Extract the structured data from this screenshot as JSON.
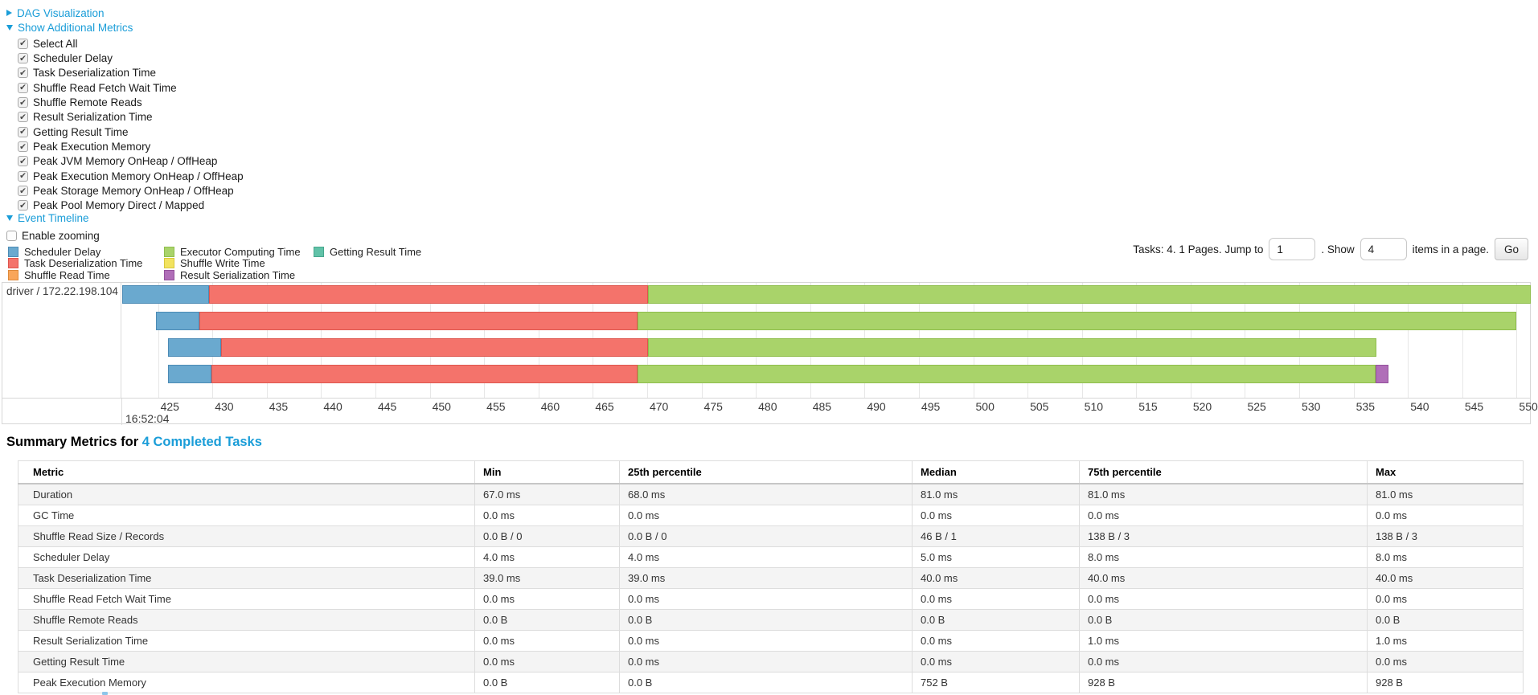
{
  "colors": {
    "link": "#1A9DD8",
    "segments": {
      "scheduler-delay": {
        "fill": "#6AA9CF",
        "border": "#4C8BB5"
      },
      "task-deserialization": {
        "fill": "#F4736B",
        "border": "#DE564E"
      },
      "shuffle-read": {
        "fill": "#F9A65A",
        "border": "#DE8A3C"
      },
      "executor-computing": {
        "fill": "#A9D36A",
        "border": "#8FBE4D"
      },
      "shuffle-write": {
        "fill": "#F2E35F",
        "border": "#D8C83E"
      },
      "result-serialization": {
        "fill": "#B06EB8",
        "border": "#94519C"
      },
      "getting-result": {
        "fill": "#61C2A8",
        "border": "#47A78D"
      }
    }
  },
  "controls": {
    "dag": {
      "label": "DAG Visualization",
      "expanded": false
    },
    "metrics_toggle": {
      "label": "Show Additional Metrics",
      "expanded": true
    },
    "metric_checkboxes": [
      {
        "label": "Select All",
        "checked": true
      },
      {
        "label": "Scheduler Delay",
        "checked": true
      },
      {
        "label": "Task Deserialization Time",
        "checked": true
      },
      {
        "label": "Shuffle Read Fetch Wait Time",
        "checked": true
      },
      {
        "label": "Shuffle Remote Reads",
        "checked": true
      },
      {
        "label": "Result Serialization Time",
        "checked": true
      },
      {
        "label": "Getting Result Time",
        "checked": true
      },
      {
        "label": "Peak Execution Memory",
        "checked": true
      },
      {
        "label": "Peak JVM Memory OnHeap / OffHeap",
        "checked": true
      },
      {
        "label": "Peak Execution Memory OnHeap / OffHeap",
        "checked": true
      },
      {
        "label": "Peak Storage Memory OnHeap / OffHeap",
        "checked": true
      },
      {
        "label": "Peak Pool Memory Direct / Mapped",
        "checked": true
      }
    ],
    "event_timeline": {
      "label": "Event Timeline",
      "expanded": true
    },
    "enable_zooming": {
      "label": "Enable zooming",
      "checked": false
    }
  },
  "legend": {
    "columns": [
      [
        {
          "label": "Scheduler Delay",
          "key": "scheduler-delay"
        },
        {
          "label": "Task Deserialization Time",
          "key": "task-deserialization"
        },
        {
          "label": "Shuffle Read Time",
          "key": "shuffle-read"
        }
      ],
      [
        {
          "label": "Executor Computing Time",
          "key": "executor-computing"
        },
        {
          "label": "Shuffle Write Time",
          "key": "shuffle-write"
        },
        {
          "label": "Result Serialization Time",
          "key": "result-serialization"
        }
      ],
      [
        {
          "label": "Getting Result Time",
          "key": "getting-result"
        }
      ]
    ]
  },
  "pagination": {
    "tasks_text": "Tasks: 4. 1 Pages. Jump to",
    "jump_value": "1",
    "show_label": ". Show",
    "show_value": "4",
    "items_text": "items in a page.",
    "go_label": "Go"
  },
  "chart_data": {
    "type": "timeline",
    "group_label": "driver / 172.22.198.104",
    "axis": {
      "unit": "ms within second",
      "time_of_day_label": "16:52:04",
      "view_min": 421.7,
      "view_max": 551.3,
      "tick_step": 5,
      "ticks": [
        425,
        430,
        435,
        440,
        445,
        450,
        455,
        460,
        465,
        470,
        475,
        480,
        485,
        490,
        495,
        500,
        505,
        510,
        515,
        520,
        525,
        530,
        535,
        540,
        545,
        550
      ]
    },
    "tasks": [
      {
        "segments": [
          {
            "type": "scheduler-delay",
            "start": 421.7,
            "end": 429.7
          },
          {
            "type": "task-deserialization",
            "start": 429.7,
            "end": 470.1
          },
          {
            "type": "executor-computing",
            "start": 470.1,
            "end": 551.3
          }
        ]
      },
      {
        "segments": [
          {
            "type": "scheduler-delay",
            "start": 424.8,
            "end": 428.8
          },
          {
            "type": "task-deserialization",
            "start": 428.8,
            "end": 469.1
          },
          {
            "type": "executor-computing",
            "start": 469.1,
            "end": 550.0
          }
        ]
      },
      {
        "segments": [
          {
            "type": "scheduler-delay",
            "start": 425.9,
            "end": 430.8
          },
          {
            "type": "task-deserialization",
            "start": 430.8,
            "end": 470.1
          },
          {
            "type": "executor-computing",
            "start": 470.1,
            "end": 537.1
          }
        ]
      },
      {
        "segments": [
          {
            "type": "scheduler-delay",
            "start": 425.9,
            "end": 429.9
          },
          {
            "type": "task-deserialization",
            "start": 429.9,
            "end": 469.1
          },
          {
            "type": "executor-computing",
            "start": 469.1,
            "end": 537.0
          },
          {
            "type": "result-serialization",
            "start": 537.0,
            "end": 538.2
          }
        ]
      }
    ]
  },
  "summary": {
    "title_prefix": "Summary Metrics for",
    "title_link": "4 Completed Tasks",
    "table": {
      "headers": [
        "Metric",
        "Min",
        "25th percentile",
        "Median",
        "75th percentile",
        "Max"
      ],
      "rows": [
        {
          "metric": "Duration",
          "values": [
            "67.0 ms",
            "68.0 ms",
            "81.0 ms",
            "81.0 ms",
            "81.0 ms"
          ]
        },
        {
          "metric": "GC Time",
          "values": [
            "0.0 ms",
            "0.0 ms",
            "0.0 ms",
            "0.0 ms",
            "0.0 ms"
          ]
        },
        {
          "metric": "Shuffle Read Size / Records",
          "values": [
            "0.0 B / 0",
            "0.0 B / 0",
            "46 B / 1",
            "138 B / 3",
            "138 B / 3"
          ]
        },
        {
          "metric": "Scheduler Delay",
          "values": [
            "4.0 ms",
            "4.0 ms",
            "5.0 ms",
            "8.0 ms",
            "8.0 ms"
          ]
        },
        {
          "metric": "Task Deserialization Time",
          "values": [
            "39.0 ms",
            "39.0 ms",
            "40.0 ms",
            "40.0 ms",
            "40.0 ms"
          ]
        },
        {
          "metric": "Shuffle Read Fetch Wait Time",
          "values": [
            "0.0 ms",
            "0.0 ms",
            "0.0 ms",
            "0.0 ms",
            "0.0 ms"
          ]
        },
        {
          "metric": "Shuffle Remote Reads",
          "values": [
            "0.0 B",
            "0.0 B",
            "0.0 B",
            "0.0 B",
            "0.0 B"
          ]
        },
        {
          "metric": "Result Serialization Time",
          "values": [
            "0.0 ms",
            "0.0 ms",
            "0.0 ms",
            "1.0 ms",
            "1.0 ms"
          ]
        },
        {
          "metric": "Getting Result Time",
          "values": [
            "0.0 ms",
            "0.0 ms",
            "0.0 ms",
            "0.0 ms",
            "0.0 ms"
          ]
        },
        {
          "metric": "Peak Execution Memory",
          "values": [
            "0.0 B",
            "0.0 B",
            "752 B",
            "928 B",
            "928 B"
          ]
        }
      ]
    }
  }
}
